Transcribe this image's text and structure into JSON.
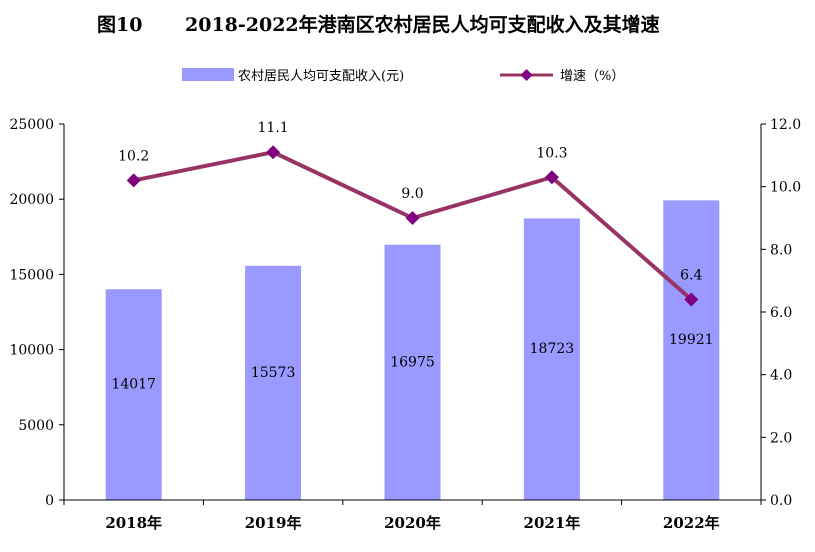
{
  "chart_data": {
    "type": "bar+line",
    "title_prefix": "图10",
    "title": "2018-2022年港南区农村居民人均可支配收入及其增速",
    "categories": [
      "2018年",
      "2019年",
      "2020年",
      "2021年",
      "2022年"
    ],
    "series": [
      {
        "name": "农村居民人均可支配收入(元)",
        "type": "bar",
        "axis": "left",
        "values": [
          14017,
          15573,
          16975,
          18723,
          19921
        ],
        "labels": [
          "14017",
          "15573",
          "16975",
          "18723",
          "19921"
        ],
        "color": "#9999ff"
      },
      {
        "name": "增速（%）",
        "type": "line",
        "axis": "right",
        "values": [
          10.2,
          11.1,
          9.0,
          10.3,
          6.4
        ],
        "labels": [
          "10.2",
          "11.1",
          "9.0",
          "10.3",
          "6.4"
        ],
        "color": "#993366"
      }
    ],
    "left_axis": {
      "ylim": [
        0,
        25000
      ],
      "ticks": [
        0,
        5000,
        10000,
        15000,
        20000,
        25000
      ],
      "tick_labels": [
        "0",
        "5000",
        "10000",
        "15000",
        "20000",
        "25000"
      ]
    },
    "right_axis": {
      "ylim": [
        0,
        12
      ],
      "ticks": [
        0,
        2,
        4,
        6,
        8,
        10,
        12
      ],
      "tick_labels": [
        "0.0",
        "2.0",
        "4.0",
        "6.0",
        "8.0",
        "10.0",
        "12.0"
      ]
    },
    "legend": "top-center",
    "grid": false
  }
}
